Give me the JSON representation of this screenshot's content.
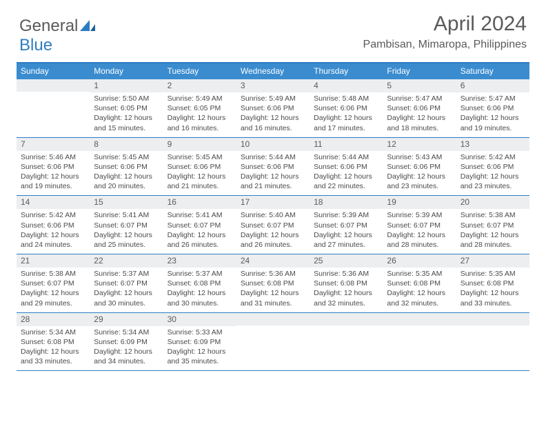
{
  "brand": {
    "part1": "General",
    "part2": "Blue"
  },
  "title": "April 2024",
  "location": "Pambisan, Mimaropa, Philippines",
  "dow": [
    "Sunday",
    "Monday",
    "Tuesday",
    "Wednesday",
    "Thursday",
    "Friday",
    "Saturday"
  ],
  "colors": {
    "accent": "#3a8ccf",
    "accent_border": "#2d7dc4",
    "text": "#4a4a4a",
    "muted_bg": "#eceef0"
  },
  "weeks": [
    [
      {
        "n": "",
        "sr": "",
        "ss": "",
        "dl": ""
      },
      {
        "n": "1",
        "sr": "Sunrise: 5:50 AM",
        "ss": "Sunset: 6:05 PM",
        "dl": "Daylight: 12 hours and 15 minutes."
      },
      {
        "n": "2",
        "sr": "Sunrise: 5:49 AM",
        "ss": "Sunset: 6:05 PM",
        "dl": "Daylight: 12 hours and 16 minutes."
      },
      {
        "n": "3",
        "sr": "Sunrise: 5:49 AM",
        "ss": "Sunset: 6:06 PM",
        "dl": "Daylight: 12 hours and 16 minutes."
      },
      {
        "n": "4",
        "sr": "Sunrise: 5:48 AM",
        "ss": "Sunset: 6:06 PM",
        "dl": "Daylight: 12 hours and 17 minutes."
      },
      {
        "n": "5",
        "sr": "Sunrise: 5:47 AM",
        "ss": "Sunset: 6:06 PM",
        "dl": "Daylight: 12 hours and 18 minutes."
      },
      {
        "n": "6",
        "sr": "Sunrise: 5:47 AM",
        "ss": "Sunset: 6:06 PM",
        "dl": "Daylight: 12 hours and 19 minutes."
      }
    ],
    [
      {
        "n": "7",
        "sr": "Sunrise: 5:46 AM",
        "ss": "Sunset: 6:06 PM",
        "dl": "Daylight: 12 hours and 19 minutes."
      },
      {
        "n": "8",
        "sr": "Sunrise: 5:45 AM",
        "ss": "Sunset: 6:06 PM",
        "dl": "Daylight: 12 hours and 20 minutes."
      },
      {
        "n": "9",
        "sr": "Sunrise: 5:45 AM",
        "ss": "Sunset: 6:06 PM",
        "dl": "Daylight: 12 hours and 21 minutes."
      },
      {
        "n": "10",
        "sr": "Sunrise: 5:44 AM",
        "ss": "Sunset: 6:06 PM",
        "dl": "Daylight: 12 hours and 21 minutes."
      },
      {
        "n": "11",
        "sr": "Sunrise: 5:44 AM",
        "ss": "Sunset: 6:06 PM",
        "dl": "Daylight: 12 hours and 22 minutes."
      },
      {
        "n": "12",
        "sr": "Sunrise: 5:43 AM",
        "ss": "Sunset: 6:06 PM",
        "dl": "Daylight: 12 hours and 23 minutes."
      },
      {
        "n": "13",
        "sr": "Sunrise: 5:42 AM",
        "ss": "Sunset: 6:06 PM",
        "dl": "Daylight: 12 hours and 23 minutes."
      }
    ],
    [
      {
        "n": "14",
        "sr": "Sunrise: 5:42 AM",
        "ss": "Sunset: 6:06 PM",
        "dl": "Daylight: 12 hours and 24 minutes."
      },
      {
        "n": "15",
        "sr": "Sunrise: 5:41 AM",
        "ss": "Sunset: 6:07 PM",
        "dl": "Daylight: 12 hours and 25 minutes."
      },
      {
        "n": "16",
        "sr": "Sunrise: 5:41 AM",
        "ss": "Sunset: 6:07 PM",
        "dl": "Daylight: 12 hours and 26 minutes."
      },
      {
        "n": "17",
        "sr": "Sunrise: 5:40 AM",
        "ss": "Sunset: 6:07 PM",
        "dl": "Daylight: 12 hours and 26 minutes."
      },
      {
        "n": "18",
        "sr": "Sunrise: 5:39 AM",
        "ss": "Sunset: 6:07 PM",
        "dl": "Daylight: 12 hours and 27 minutes."
      },
      {
        "n": "19",
        "sr": "Sunrise: 5:39 AM",
        "ss": "Sunset: 6:07 PM",
        "dl": "Daylight: 12 hours and 28 minutes."
      },
      {
        "n": "20",
        "sr": "Sunrise: 5:38 AM",
        "ss": "Sunset: 6:07 PM",
        "dl": "Daylight: 12 hours and 28 minutes."
      }
    ],
    [
      {
        "n": "21",
        "sr": "Sunrise: 5:38 AM",
        "ss": "Sunset: 6:07 PM",
        "dl": "Daylight: 12 hours and 29 minutes."
      },
      {
        "n": "22",
        "sr": "Sunrise: 5:37 AM",
        "ss": "Sunset: 6:07 PM",
        "dl": "Daylight: 12 hours and 30 minutes."
      },
      {
        "n": "23",
        "sr": "Sunrise: 5:37 AM",
        "ss": "Sunset: 6:08 PM",
        "dl": "Daylight: 12 hours and 30 minutes."
      },
      {
        "n": "24",
        "sr": "Sunrise: 5:36 AM",
        "ss": "Sunset: 6:08 PM",
        "dl": "Daylight: 12 hours and 31 minutes."
      },
      {
        "n": "25",
        "sr": "Sunrise: 5:36 AM",
        "ss": "Sunset: 6:08 PM",
        "dl": "Daylight: 12 hours and 32 minutes."
      },
      {
        "n": "26",
        "sr": "Sunrise: 5:35 AM",
        "ss": "Sunset: 6:08 PM",
        "dl": "Daylight: 12 hours and 32 minutes."
      },
      {
        "n": "27",
        "sr": "Sunrise: 5:35 AM",
        "ss": "Sunset: 6:08 PM",
        "dl": "Daylight: 12 hours and 33 minutes."
      }
    ],
    [
      {
        "n": "28",
        "sr": "Sunrise: 5:34 AM",
        "ss": "Sunset: 6:08 PM",
        "dl": "Daylight: 12 hours and 33 minutes."
      },
      {
        "n": "29",
        "sr": "Sunrise: 5:34 AM",
        "ss": "Sunset: 6:09 PM",
        "dl": "Daylight: 12 hours and 34 minutes."
      },
      {
        "n": "30",
        "sr": "Sunrise: 5:33 AM",
        "ss": "Sunset: 6:09 PM",
        "dl": "Daylight: 12 hours and 35 minutes."
      },
      {
        "n": "",
        "sr": "",
        "ss": "",
        "dl": ""
      },
      {
        "n": "",
        "sr": "",
        "ss": "",
        "dl": ""
      },
      {
        "n": "",
        "sr": "",
        "ss": "",
        "dl": ""
      },
      {
        "n": "",
        "sr": "",
        "ss": "",
        "dl": ""
      }
    ]
  ]
}
